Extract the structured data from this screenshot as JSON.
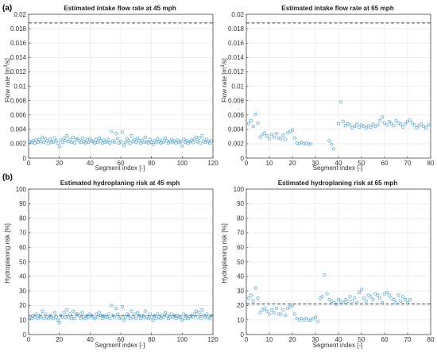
{
  "panel_labels": [
    "(a)",
    "(b)"
  ],
  "colors": {
    "marker": "#5aa7d0",
    "reference": "#444444",
    "grid": "#e6e6e6",
    "axis": "#333333"
  },
  "chart_data": [
    {
      "type": "scatter",
      "title": "Estimated intake flow rate at 45 mph",
      "xlabel": "Segment index [-]",
      "ylabel_parts": [
        "Flow rate [m",
        "3",
        "/s]"
      ],
      "xlim": [
        0,
        120
      ],
      "ylim": [
        0,
        0.02
      ],
      "xticks": [
        0,
        20,
        40,
        60,
        80,
        100,
        120
      ],
      "xtick_labels": [
        "0",
        "20",
        "40",
        "60",
        "80",
        "100",
        "120"
      ],
      "yticks": [
        0,
        0.002,
        0.004,
        0.006,
        0.008,
        0.01,
        0.012,
        0.014,
        0.016,
        0.018,
        0.02
      ],
      "ytick_labels": [
        "0",
        "0.002",
        "0.004",
        "0.006",
        "0.008",
        "0.01",
        "0.012",
        "0.014",
        "0.016",
        "0.018",
        "0.02"
      ],
      "grid": true,
      "reference_line": 0.0188,
      "x": [
        1,
        2,
        3,
        4,
        5,
        6,
        7,
        8,
        9,
        10,
        11,
        12,
        13,
        14,
        15,
        16,
        17,
        18,
        19,
        20,
        21,
        22,
        23,
        24,
        25,
        26,
        27,
        28,
        29,
        30,
        31,
        32,
        33,
        34,
        35,
        36,
        37,
        38,
        39,
        40,
        41,
        42,
        43,
        44,
        45,
        46,
        47,
        48,
        49,
        50,
        51,
        52,
        53,
        54,
        55,
        56,
        57,
        58,
        59,
        60,
        61,
        62,
        63,
        64,
        65,
        66,
        67,
        68,
        69,
        70,
        71,
        72,
        73,
        74,
        75,
        76,
        77,
        78,
        79,
        80,
        81,
        82,
        83,
        84,
        85,
        86,
        87,
        88,
        89,
        90,
        91,
        92,
        93,
        94,
        95,
        96,
        97,
        98,
        99,
        100,
        101,
        102,
        103,
        104,
        105,
        106,
        107,
        108,
        109,
        110,
        111,
        112,
        113,
        114,
        115,
        116,
        117,
        118,
        119
      ],
      "y": [
        0.0023,
        0.0022,
        0.0024,
        0.0021,
        0.0025,
        0.0022,
        0.0026,
        0.0023,
        0.0029,
        0.0022,
        0.0027,
        0.0024,
        0.0021,
        0.0026,
        0.0023,
        0.0022,
        0.0028,
        0.0024,
        0.0021,
        0.0016,
        0.0025,
        0.0022,
        0.0028,
        0.0024,
        0.0031,
        0.0023,
        0.0026,
        0.0022,
        0.0029,
        0.0021,
        0.0026,
        0.0027,
        0.0024,
        0.0022,
        0.0028,
        0.0023,
        0.0021,
        0.0025,
        0.0022,
        0.0027,
        0.0024,
        0.0023,
        0.0021,
        0.0026,
        0.0022,
        0.0028,
        0.0024,
        0.0021,
        0.0025,
        0.0022,
        0.0023,
        0.0026,
        0.0021,
        0.0037,
        0.0024,
        0.0022,
        0.0034,
        0.0027,
        0.0021,
        0.0023,
        0.0036,
        0.0018,
        0.0022,
        0.0027,
        0.0024,
        0.0021,
        0.0031,
        0.0023,
        0.0026,
        0.0022,
        0.0028,
        0.0024,
        0.0021,
        0.0025,
        0.0022,
        0.0029,
        0.0023,
        0.0021,
        0.0026,
        0.0022,
        0.0019,
        0.0024,
        0.0022,
        0.0027,
        0.0023,
        0.0021,
        0.0025,
        0.0022,
        0.0028,
        0.0024,
        0.0021,
        0.0023,
        0.0026,
        0.0022,
        0.0024,
        0.0021,
        0.0025,
        0.0022,
        0.0023,
        0.0017,
        0.0026,
        0.0022,
        0.0024,
        0.0021,
        0.0023,
        0.0025,
        0.0022,
        0.0026,
        0.0029,
        0.0023,
        0.0028,
        0.0021,
        0.0031,
        0.0024,
        0.0022,
        0.0026,
        0.0023,
        0.0021,
        0.0024
      ]
    },
    {
      "type": "scatter",
      "title": "Estimated intake flow rate at 65 mph",
      "xlabel": "Segment index [-]",
      "ylabel_parts": [
        "Flow rate [m",
        "3",
        "/s]"
      ],
      "xlim": [
        0,
        80
      ],
      "ylim": [
        0,
        0.02
      ],
      "xticks": [
        0,
        10,
        20,
        30,
        40,
        50,
        60,
        70,
        80
      ],
      "xtick_labels": [
        "0",
        "10",
        "20",
        "30",
        "40",
        "50",
        "60",
        "70",
        "80"
      ],
      "yticks": [
        0,
        0.002,
        0.004,
        0.006,
        0.008,
        0.01,
        0.012,
        0.014,
        0.016,
        0.018,
        0.02
      ],
      "ytick_labels": [
        "0",
        "0.002",
        "0.004",
        "0.006",
        "0.008",
        "0.01",
        "0.012",
        "0.014",
        "0.016",
        "0.018",
        "0.02"
      ],
      "grid": true,
      "reference_line": 0.0188,
      "x": [
        1,
        2,
        3,
        4,
        5,
        6,
        7,
        8,
        9,
        10,
        11,
        12,
        13,
        14,
        15,
        16,
        17,
        18,
        19,
        20,
        21,
        22,
        23,
        24,
        25,
        26,
        27,
        28,
        36,
        37,
        38,
        40,
        41,
        42,
        43,
        44,
        45,
        46,
        47,
        48,
        49,
        50,
        51,
        52,
        53,
        54,
        55,
        56,
        57,
        58,
        59,
        60,
        61,
        62,
        63,
        64,
        65,
        66,
        67,
        68,
        69,
        70,
        71,
        72,
        73,
        74,
        75,
        76,
        77,
        78,
        79
      ],
      "y": [
        0.0048,
        0.0052,
        0.0044,
        0.0061,
        0.0049,
        0.0029,
        0.0033,
        0.0035,
        0.0031,
        0.0027,
        0.0033,
        0.0029,
        0.0034,
        0.0028,
        0.0027,
        0.0032,
        0.0026,
        0.0035,
        0.0037,
        0.0039,
        0.0028,
        0.0021,
        0.002,
        0.0022,
        0.002,
        0.0021,
        0.0019,
        0.002,
        0.0024,
        0.0019,
        0.0013,
        0.0048,
        0.0078,
        0.0051,
        0.0045,
        0.0048,
        0.0046,
        0.0042,
        0.0044,
        0.0047,
        0.0043,
        0.0046,
        0.0044,
        0.0042,
        0.0045,
        0.0043,
        0.0047,
        0.0044,
        0.0046,
        0.0052,
        0.0057,
        0.0049,
        0.0046,
        0.0051,
        0.0048,
        0.0045,
        0.0052,
        0.0049,
        0.0047,
        0.0043,
        0.0048,
        0.0051,
        0.0053,
        0.0049,
        0.0046,
        0.0042,
        0.0045,
        0.0047,
        0.0044,
        0.0042,
        0.0046
      ]
    },
    {
      "type": "scatter",
      "title": "Estimated hydroplaning risk at 45 mph",
      "xlabel": "Segment index [-]",
      "ylabel_parts": [
        "Hydroplaning risk [%]",
        "",
        ""
      ],
      "xlim": [
        0,
        120
      ],
      "ylim": [
        0,
        100
      ],
      "xticks": [
        0,
        20,
        40,
        60,
        80,
        100,
        120
      ],
      "xtick_labels": [
        "0",
        "20",
        "40",
        "60",
        "80",
        "100",
        "120"
      ],
      "yticks": [
        0,
        10,
        20,
        30,
        40,
        50,
        60,
        70,
        80,
        90,
        100
      ],
      "ytick_labels": [
        "0",
        "10",
        "20",
        "30",
        "40",
        "50",
        "60",
        "70",
        "80",
        "90",
        "100"
      ],
      "grid": true,
      "reference_line": 13,
      "x": [
        1,
        2,
        3,
        4,
        5,
        6,
        7,
        8,
        9,
        10,
        11,
        12,
        13,
        14,
        15,
        16,
        17,
        18,
        19,
        20,
        21,
        22,
        23,
        24,
        25,
        26,
        27,
        28,
        29,
        30,
        31,
        32,
        33,
        34,
        35,
        36,
        37,
        38,
        39,
        40,
        41,
        42,
        43,
        44,
        45,
        46,
        47,
        48,
        49,
        50,
        51,
        52,
        53,
        54,
        55,
        56,
        57,
        58,
        59,
        60,
        61,
        62,
        63,
        64,
        65,
        66,
        67,
        68,
        69,
        70,
        71,
        72,
        73,
        74,
        75,
        76,
        77,
        78,
        79,
        80,
        81,
        82,
        83,
        84,
        85,
        86,
        87,
        88,
        89,
        90,
        91,
        92,
        93,
        94,
        95,
        96,
        97,
        98,
        99,
        100,
        101,
        102,
        103,
        104,
        105,
        106,
        107,
        108,
        109,
        110,
        111,
        112,
        113,
        114,
        115,
        116,
        117,
        118,
        119
      ],
      "y": [
        12,
        11,
        13,
        12,
        14,
        11,
        13,
        12,
        16,
        11,
        14,
        12,
        11,
        13,
        12,
        11,
        15,
        12,
        10,
        8,
        13,
        12,
        15,
        12,
        17,
        12,
        14,
        11,
        16,
        11,
        14,
        14,
        13,
        11,
        15,
        12,
        11,
        13,
        12,
        14,
        13,
        12,
        11,
        14,
        12,
        15,
        13,
        11,
        13,
        12,
        12,
        14,
        11,
        20,
        13,
        12,
        18,
        14,
        11,
        12,
        19,
        10,
        12,
        14,
        13,
        11,
        16,
        12,
        14,
        11,
        15,
        13,
        11,
        13,
        12,
        16,
        12,
        11,
        14,
        12,
        10,
        13,
        11,
        14,
        12,
        11,
        13,
        12,
        15,
        13,
        11,
        12,
        14,
        12,
        13,
        11,
        13,
        12,
        12,
        10,
        14,
        11,
        13,
        11,
        12,
        13,
        12,
        14,
        16,
        12,
        15,
        11,
        17,
        13,
        12,
        14,
        12,
        11,
        13
      ]
    },
    {
      "type": "scatter",
      "title": "Estimated hydroplaning risk at 65 mph",
      "xlabel": "Segment index [-]",
      "ylabel_parts": [
        "Hydroplaning risk [%]",
        "",
        ""
      ],
      "xlim": [
        0,
        80
      ],
      "ylim": [
        0,
        100
      ],
      "xticks": [
        0,
        10,
        20,
        30,
        40,
        50,
        60,
        70,
        80
      ],
      "xtick_labels": [
        "0",
        "10",
        "20",
        "30",
        "40",
        "50",
        "60",
        "70",
        "80"
      ],
      "yticks": [
        0,
        10,
        20,
        30,
        40,
        50,
        60,
        70,
        80,
        90,
        100
      ],
      "ytick_labels": [
        "0",
        "10",
        "20",
        "30",
        "40",
        "50",
        "60",
        "70",
        "80",
        "90",
        "100"
      ],
      "grid": true,
      "reference_line": 21,
      "x": [
        1,
        2,
        3,
        4,
        5,
        6,
        7,
        8,
        9,
        10,
        11,
        12,
        13,
        14,
        15,
        16,
        17,
        18,
        19,
        20,
        21,
        22,
        23,
        24,
        25,
        26,
        27,
        28,
        29,
        30,
        31,
        32,
        33,
        34,
        35,
        36,
        37,
        38,
        39,
        40,
        41,
        42,
        43,
        44,
        45,
        46,
        47,
        48,
        49,
        50,
        51,
        52,
        53,
        54,
        55,
        56,
        57,
        58,
        59,
        60,
        61,
        62,
        63,
        64,
        65,
        66,
        67,
        68,
        69,
        70,
        71
      ],
      "y": [
        25,
        27,
        23,
        32,
        25,
        15,
        17,
        18,
        16,
        14,
        17,
        15,
        18,
        14,
        14,
        17,
        13,
        18,
        19,
        20,
        14,
        11,
        10,
        11,
        10,
        11,
        10,
        10,
        11,
        12,
        9,
        25,
        26,
        41,
        28,
        24,
        23,
        22,
        21,
        24,
        23,
        22,
        24,
        23,
        26,
        23,
        25,
        22,
        29,
        31,
        25,
        23,
        27,
        26,
        24,
        28,
        27,
        25,
        22,
        28,
        29,
        27,
        25,
        24,
        22,
        27,
        23,
        26,
        24,
        22,
        24
      ]
    }
  ]
}
